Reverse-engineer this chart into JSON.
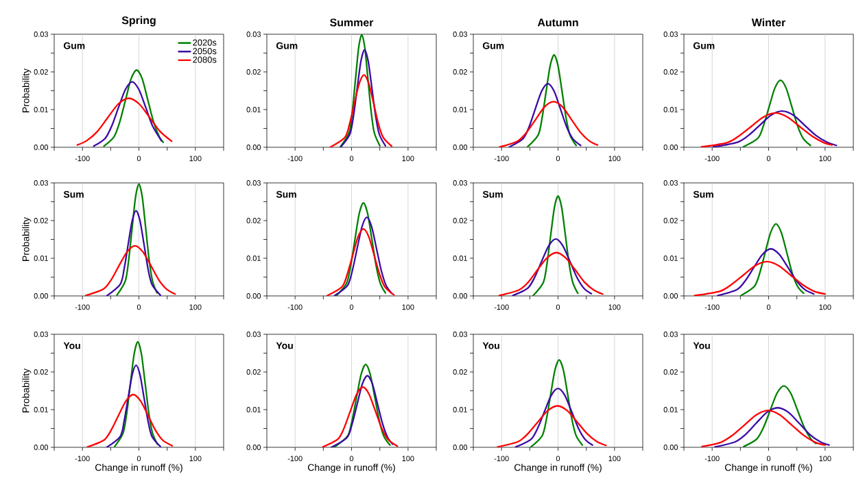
{
  "chart_data": [
    {
      "type": "line",
      "title": "Spring",
      "ylabel": "Probability",
      "annotations": [
        "Gum"
      ],
      "legend": "top right",
      "grid": "x",
      "marker": "none",
      "line_style": "solid",
      "xlim": [
        -150,
        150
      ],
      "ylim": [
        0,
        0.03
      ],
      "xticks": [
        {
          "value": -150,
          "label": null
        },
        -100,
        {
          "value": -50,
          "label": null
        },
        0,
        {
          "value": 50,
          "label": null
        },
        100,
        {
          "value": 150,
          "label": null
        }
      ],
      "yticks": [
        {
          "value": 0,
          "label": "0.00"
        },
        {
          "value": 0.005,
          "label": null
        },
        {
          "value": 0.01,
          "label": "0.01"
        },
        {
          "value": 0.015,
          "label": null
        },
        {
          "value": 0.02,
          "label": "0.02"
        },
        {
          "value": 0.025,
          "label": null
        },
        {
          "value": 0.03,
          "label": "0.03"
        }
      ],
      "series": [
        {
          "name": "2020s",
          "color": "#008000",
          "x": [
            -62,
            -44,
            -34,
            -24,
            -14,
            -4,
            6,
            16,
            26,
            36,
            43
          ],
          "values": [
            0.0003,
            0.0028,
            0.0067,
            0.0124,
            0.0181,
            0.0205,
            0.0181,
            0.0124,
            0.0067,
            0.0028,
            0.0013
          ]
        },
        {
          "name": "2050s",
          "color": "#3b0aa6",
          "x": [
            -80,
            -60,
            -48,
            -36,
            -24,
            -12,
            0,
            12,
            24,
            40
          ],
          "values": [
            0.0003,
            0.0023,
            0.0057,
            0.0106,
            0.0153,
            0.0174,
            0.0153,
            0.0106,
            0.0057,
            0.0017
          ]
        },
        {
          "name": "2080s",
          "color": "#ff0000",
          "x": [
            -109,
            -92,
            -73.5,
            -55,
            -36.5,
            -18,
            0.5,
            19,
            37.5,
            58
          ],
          "values": [
            0.0006,
            0.0018,
            0.0042,
            0.0079,
            0.0115,
            0.013,
            0.0115,
            0.0079,
            0.0042,
            0.0016
          ]
        }
      ]
    },
    {
      "type": "line",
      "title": "Summer",
      "annotations": [
        "Gum"
      ],
      "grid": "x",
      "marker": "none",
      "line_style": "solid",
      "xlim": [
        -150,
        150
      ],
      "ylim": [
        0,
        0.03
      ],
      "xticks": [
        {
          "value": -150,
          "label": null
        },
        -100,
        {
          "value": -50,
          "label": null
        },
        0,
        {
          "value": 50,
          "label": null
        },
        100,
        {
          "value": 150,
          "label": null
        }
      ],
      "yticks": [
        {
          "value": 0,
          "label": "0.00"
        },
        {
          "value": 0.005,
          "label": null
        },
        {
          "value": 0.01,
          "label": "0.01"
        },
        {
          "value": 0.015,
          "label": null
        },
        {
          "value": 0.02,
          "label": "0.02"
        },
        {
          "value": 0.025,
          "label": null
        },
        {
          "value": 0.03,
          "label": "0.03"
        }
      ],
      "series": [
        {
          "color": "#008000",
          "x": [
            -20,
            -4,
            1.5,
            7,
            12.5,
            18,
            23.5,
            29,
            34.5,
            40,
            50
          ],
          "values": [
            0.0001,
            0.004,
            0.0097,
            0.0181,
            0.0264,
            0.0299,
            0.0264,
            0.0181,
            0.0097,
            0.004,
            0.0004
          ]
        },
        {
          "color": "#3b0aa6",
          "x": [
            -19,
            -3,
            3.5,
            10,
            16.5,
            23,
            29.5,
            36,
            42.5,
            49,
            60
          ],
          "values": [
            0.0001,
            0.0035,
            0.0084,
            0.0157,
            0.0228,
            0.0259,
            0.0228,
            0.0157,
            0.0084,
            0.0035,
            0.0004
          ]
        },
        {
          "color": "#ff0000",
          "x": [
            -38,
            -12,
            -3.5,
            5,
            13.5,
            22,
            30.5,
            39,
            47.5,
            56,
            71
          ],
          "values": [
            0,
            0.0026,
            0.0062,
            0.0117,
            0.0169,
            0.0192,
            0.0169,
            0.0117,
            0.0062,
            0.0026,
            0.0003
          ]
        }
      ]
    },
    {
      "type": "line",
      "title": "Autumn",
      "annotations": [
        "Gum"
      ],
      "grid": "x",
      "marker": "none",
      "line_style": "solid",
      "xlim": [
        -150,
        150
      ],
      "ylim": [
        0,
        0.03
      ],
      "xticks": [
        {
          "value": -150,
          "label": null
        },
        -100,
        {
          "value": -50,
          "label": null
        },
        0,
        {
          "value": 50,
          "label": null
        },
        100,
        {
          "value": 150,
          "label": null
        }
      ],
      "yticks": [
        {
          "value": 0,
          "label": "0.00"
        },
        {
          "value": 0.005,
          "label": null
        },
        {
          "value": 0.01,
          "label": "0.01"
        },
        {
          "value": 0.015,
          "label": null
        },
        {
          "value": 0.02,
          "label": "0.02"
        },
        {
          "value": 0.025,
          "label": null
        },
        {
          "value": 0.03,
          "label": "0.03"
        }
      ],
      "series": [
        {
          "color": "#008000",
          "x": [
            -54,
            -35,
            -28,
            -21,
            -14,
            -7,
            0,
            7,
            14,
            21,
            32
          ],
          "values": [
            0.0001,
            0.0033,
            0.008,
            0.0149,
            0.0216,
            0.0245,
            0.0216,
            0.0149,
            0.008,
            0.0033,
            0.0005
          ]
        },
        {
          "color": "#3b0aa6",
          "x": [
            -86,
            -62,
            -51,
            -40,
            -29,
            -18,
            -7,
            4,
            15,
            26,
            40
          ],
          "values": [
            0.0001,
            0.0023,
            0.0055,
            0.0103,
            0.0149,
            0.0169,
            0.0149,
            0.0103,
            0.0055,
            0.0023,
            0.0005
          ]
        },
        {
          "color": "#ff0000",
          "x": [
            -103,
            -72,
            -56,
            -40,
            -24,
            -8,
            8,
            24,
            40,
            56,
            70
          ],
          "values": [
            0.0001,
            0.0016,
            0.0039,
            0.0073,
            0.0107,
            0.0121,
            0.0107,
            0.0073,
            0.0039,
            0.0016,
            0.0006
          ]
        }
      ]
    },
    {
      "type": "line",
      "title": "Winter",
      "annotations": [
        "Gum"
      ],
      "grid": "x",
      "marker": "none",
      "line_style": "solid",
      "xlim": [
        -150,
        150
      ],
      "ylim": [
        0,
        0.03
      ],
      "xticks": [
        {
          "value": -150,
          "label": null
        },
        -100,
        {
          "value": -50,
          "label": null
        },
        0,
        {
          "value": 50,
          "label": null
        },
        100,
        {
          "value": 150,
          "label": null
        }
      ],
      "yticks": [
        {
          "value": 0,
          "label": "0.00"
        },
        {
          "value": 0.005,
          "label": null
        },
        {
          "value": 0.01,
          "label": "0.01"
        },
        {
          "value": 0.015,
          "label": null
        },
        {
          "value": 0.02,
          "label": "0.02"
        },
        {
          "value": 0.025,
          "label": null
        },
        {
          "value": 0.03,
          "label": "0.03"
        }
      ],
      "series": [
        {
          "color": "#008000",
          "x": [
            -45,
            -19,
            -9,
            1,
            11,
            21,
            31,
            41,
            51,
            61,
            74
          ],
          "values": [
            0.0001,
            0.0024,
            0.0058,
            0.0108,
            0.0157,
            0.0178,
            0.0157,
            0.0108,
            0.0058,
            0.0024,
            0.0005
          ]
        },
        {
          "color": "#3b0aa6",
          "x": [
            -98,
            -56,
            -36,
            -16,
            4,
            24,
            44,
            64,
            84,
            104,
            120
          ],
          "values": [
            0.0001,
            0.0013,
            0.0031,
            0.0058,
            0.0085,
            0.0096,
            0.0085,
            0.0058,
            0.0031,
            0.0013,
            0.0005
          ]
        },
        {
          "color": "#ff0000",
          "x": [
            -119,
            -74,
            -52.5,
            -31,
            -9.5,
            12,
            33.5,
            55,
            76.5,
            98,
            112
          ],
          "values": [
            0.0001,
            0.0012,
            0.003,
            0.0055,
            0.008,
            0.0091,
            0.008,
            0.0055,
            0.003,
            0.0012,
            0.0006
          ]
        }
      ]
    },
    {
      "type": "line",
      "ylabel": "Probability",
      "annotations": [
        "Sum"
      ],
      "grid": "x",
      "marker": "none",
      "line_style": "solid",
      "xlim": [
        -150,
        150
      ],
      "ylim": [
        0,
        0.03
      ],
      "xticks": [
        {
          "value": -150,
          "label": null
        },
        -100,
        {
          "value": -50,
          "label": null
        },
        0,
        {
          "value": 50,
          "label": null
        },
        100,
        {
          "value": 150,
          "label": null
        }
      ],
      "yticks": [
        {
          "value": 0,
          "label": "0.00"
        },
        {
          "value": 0.005,
          "label": null
        },
        {
          "value": 0.01,
          "label": "0.01"
        },
        {
          "value": 0.015,
          "label": null
        },
        {
          "value": 0.02,
          "label": "0.02"
        },
        {
          "value": 0.025,
          "label": null
        },
        {
          "value": 0.03,
          "label": "0.03"
        }
      ],
      "series": [
        {
          "color": "#008000",
          "x": [
            -39,
            -24,
            -18,
            -12,
            -6,
            0,
            6,
            12,
            18,
            24,
            32
          ],
          "values": [
            0.0002,
            0.004,
            0.0097,
            0.018,
            0.0262,
            0.0297,
            0.0262,
            0.018,
            0.0097,
            0.004,
            0.0008
          ]
        },
        {
          "color": "#3b0aa6",
          "x": [
            -57,
            -33,
            -26,
            -19,
            -12,
            -5,
            2,
            9,
            16,
            23,
            38
          ],
          "values": [
            0,
            0.0031,
            0.0073,
            0.0137,
            0.0199,
            0.0226,
            0.0199,
            0.0137,
            0.0073,
            0.0031,
            0.0002
          ]
        },
        {
          "color": "#ff0000",
          "x": [
            -94,
            -63,
            -49,
            -35,
            -21,
            -7,
            7,
            21,
            35,
            49,
            64
          ],
          "values": [
            0.0001,
            0.0018,
            0.0043,
            0.0081,
            0.0117,
            0.0133,
            0.0117,
            0.0081,
            0.0043,
            0.0018,
            0.0005
          ]
        }
      ]
    },
    {
      "type": "line",
      "annotations": [
        "Sum"
      ],
      "grid": "x",
      "marker": "none",
      "line_style": "solid",
      "xlim": [
        -150,
        150
      ],
      "ylim": [
        0,
        0.03
      ],
      "xticks": [
        {
          "value": -150,
          "label": null
        },
        -100,
        {
          "value": -50,
          "label": null
        },
        0,
        {
          "value": 50,
          "label": null
        },
        100,
        {
          "value": 150,
          "label": null
        }
      ],
      "yticks": [
        {
          "value": 0,
          "label": "0.00"
        },
        {
          "value": 0.005,
          "label": null
        },
        {
          "value": 0.01,
          "label": "0.01"
        },
        {
          "value": 0.015,
          "label": null
        },
        {
          "value": 0.02,
          "label": "0.02"
        },
        {
          "value": 0.025,
          "label": null
        },
        {
          "value": 0.03,
          "label": "0.03"
        }
      ],
      "series": [
        {
          "color": "#008000",
          "x": [
            -26,
            -9,
            -1.5,
            6,
            13.5,
            21,
            28.5,
            36,
            43.5,
            51,
            60
          ],
          "values": [
            0.0002,
            0.0033,
            0.008,
            0.015,
            0.0218,
            0.0247,
            0.0218,
            0.015,
            0.008,
            0.0033,
            0.0008
          ]
        },
        {
          "color": "#3b0aa6",
          "x": [
            -30,
            -7,
            1.5,
            10,
            18.5,
            27,
            35.5,
            44,
            52.5,
            61,
            71
          ],
          "values": [
            0.0001,
            0.0028,
            0.0068,
            0.0127,
            0.0184,
            0.0209,
            0.0184,
            0.0127,
            0.0068,
            0.0028,
            0.0007
          ]
        },
        {
          "color": "#ff0000",
          "x": [
            -43,
            -17,
            -7.5,
            2,
            11.5,
            21,
            30.5,
            40,
            49.5,
            59,
            75
          ],
          "values": [
            0.0001,
            0.0024,
            0.0058,
            0.0108,
            0.0157,
            0.0178,
            0.0157,
            0.0108,
            0.0058,
            0.0024,
            0.0003
          ]
        }
      ]
    },
    {
      "type": "line",
      "annotations": [
        "Sum"
      ],
      "grid": "x",
      "marker": "none",
      "line_style": "solid",
      "xlim": [
        -150,
        150
      ],
      "ylim": [
        0,
        0.03
      ],
      "xticks": [
        {
          "value": -150,
          "label": null
        },
        -100,
        {
          "value": -50,
          "label": null
        },
        0,
        {
          "value": 50,
          "label": null
        },
        100,
        {
          "value": 150,
          "label": null
        }
      ],
      "yticks": [
        {
          "value": 0,
          "label": "0.00"
        },
        {
          "value": 0.005,
          "label": null
        },
        {
          "value": 0.01,
          "label": "0.01"
        },
        {
          "value": 0.015,
          "label": null
        },
        {
          "value": 0.02,
          "label": "0.02"
        },
        {
          "value": 0.025,
          "label": null
        },
        {
          "value": 0.03,
          "label": "0.03"
        }
      ],
      "series": [
        {
          "color": "#008000",
          "x": [
            -44,
            -26,
            -19.5,
            -13,
            -6.5,
            0,
            6.5,
            13,
            19.5,
            26,
            35
          ],
          "values": [
            0.0001,
            0.0036,
            0.0086,
            0.0161,
            0.0234,
            0.0265,
            0.0234,
            0.0161,
            0.0086,
            0.0036,
            0.0007
          ]
        },
        {
          "color": "#3b0aa6",
          "x": [
            -80,
            -54,
            -41.5,
            -29,
            -16.5,
            -4,
            8.5,
            21,
            33.5,
            46,
            59
          ],
          "values": [
            0.0001,
            0.002,
            0.0049,
            0.0092,
            0.0133,
            0.0151,
            0.0133,
            0.0092,
            0.0049,
            0.002,
            0.0006
          ]
        },
        {
          "color": "#ff0000",
          "x": [
            -104,
            -69,
            -52.5,
            -36,
            -19.5,
            -3,
            13.5,
            30,
            46.5,
            63,
            79
          ],
          "values": [
            0.0001,
            0.0016,
            0.0037,
            0.007,
            0.0101,
            0.0115,
            0.0101,
            0.007,
            0.0037,
            0.0016,
            0.0005
          ]
        }
      ]
    },
    {
      "type": "line",
      "annotations": [
        "Sum"
      ],
      "grid": "x",
      "marker": "none",
      "line_style": "solid",
      "xlim": [
        -150,
        150
      ],
      "ylim": [
        0,
        0.03
      ],
      "xticks": [
        {
          "value": -150,
          "label": null
        },
        -100,
        {
          "value": -50,
          "label": null
        },
        0,
        {
          "value": 50,
          "label": null
        },
        100,
        {
          "value": 150,
          "label": null
        }
      ],
      "yticks": [
        {
          "value": 0,
          "label": "0.00"
        },
        {
          "value": 0.005,
          "label": null
        },
        {
          "value": 0.01,
          "label": "0.01"
        },
        {
          "value": 0.015,
          "label": null
        },
        {
          "value": 0.02,
          "label": "0.02"
        },
        {
          "value": 0.025,
          "label": null
        },
        {
          "value": 0.03,
          "label": "0.03"
        }
      ],
      "series": [
        {
          "color": "#008000",
          "x": [
            -49,
            -25,
            -15.5,
            -6,
            3.5,
            13,
            22.5,
            32,
            41.5,
            51,
            62
          ],
          "values": [
            0.0001,
            0.0026,
            0.0062,
            0.0116,
            0.0168,
            0.0191,
            0.0168,
            0.0116,
            0.0062,
            0.0026,
            0.0007
          ]
        },
        {
          "color": "#3b0aa6",
          "x": [
            -90,
            -56,
            -41,
            -26,
            -11,
            4,
            19,
            34,
            49,
            64,
            80
          ],
          "values": [
            0.0001,
            0.0017,
            0.0041,
            0.0076,
            0.011,
            0.0125,
            0.011,
            0.0076,
            0.0041,
            0.0017,
            0.0005
          ]
        },
        {
          "color": "#ff0000",
          "x": [
            -131,
            -87,
            -66,
            -45,
            -24,
            -3,
            18,
            39,
            60,
            81,
            100
          ],
          "values": [
            0.0001,
            0.0012,
            0.003,
            0.0055,
            0.008,
            0.0091,
            0.008,
            0.0055,
            0.003,
            0.0012,
            0.0005
          ]
        }
      ]
    },
    {
      "type": "line",
      "ylabel": "Probability",
      "xlabel": "Change in runoff (%)",
      "annotations": [
        "You"
      ],
      "grid": "x",
      "marker": "none",
      "line_style": "solid",
      "xlim": [
        -150,
        150
      ],
      "ylim": [
        0,
        0.03
      ],
      "xticks": [
        {
          "value": -150,
          "label": null
        },
        -100,
        {
          "value": -50,
          "label": null
        },
        0,
        {
          "value": 50,
          "label": null
        },
        100,
        {
          "value": 150,
          "label": null
        }
      ],
      "yticks": [
        {
          "value": 0,
          "label": "0.00"
        },
        {
          "value": 0.005,
          "label": null
        },
        {
          "value": 0.01,
          "label": "0.01"
        },
        {
          "value": 0.015,
          "label": null
        },
        {
          "value": 0.02,
          "label": "0.02"
        },
        {
          "value": 0.025,
          "label": null
        },
        {
          "value": 0.03,
          "label": "0.03"
        }
      ],
      "series": [
        {
          "color": "#008000",
          "x": [
            -43,
            -28,
            -21.5,
            -15,
            -8.5,
            -2,
            4.5,
            11,
            17.5,
            24,
            33
          ],
          "values": [
            0.0002,
            0.0038,
            0.0091,
            0.017,
            0.0247,
            0.028,
            0.0247,
            0.017,
            0.0091,
            0.0038,
            0.0008
          ]
        },
        {
          "color": "#3b0aa6",
          "x": [
            -57,
            -33,
            -26,
            -19,
            -12,
            -5,
            2,
            9,
            16,
            23,
            38
          ],
          "values": [
            0,
            0.0029,
            0.0071,
            0.0132,
            0.0192,
            0.0218,
            0.0192,
            0.0132,
            0.0071,
            0.0029,
            0.0002
          ]
        },
        {
          "color": "#ff0000",
          "x": [
            -91,
            -62,
            -49,
            -36,
            -23,
            -10,
            3,
            16,
            29,
            42,
            59
          ],
          "values": [
            0.0001,
            0.0019,
            0.0046,
            0.0085,
            0.0123,
            0.014,
            0.0123,
            0.0085,
            0.0046,
            0.0019,
            0.0004
          ]
        }
      ]
    },
    {
      "type": "line",
      "xlabel": "Change in runoff (%)",
      "annotations": [
        "You"
      ],
      "grid": "x",
      "marker": "none",
      "line_style": "solid",
      "xlim": [
        -150,
        150
      ],
      "ylim": [
        0,
        0.03
      ],
      "xticks": [
        {
          "value": -150,
          "label": null
        },
        -100,
        {
          "value": -50,
          "label": null
        },
        0,
        {
          "value": 50,
          "label": null
        },
        100,
        {
          "value": 150,
          "label": null
        }
      ],
      "yticks": [
        {
          "value": 0,
          "label": "0.00"
        },
        {
          "value": 0.005,
          "label": null
        },
        {
          "value": 0.01,
          "label": "0.01"
        },
        {
          "value": 0.015,
          "label": null
        },
        {
          "value": 0.02,
          "label": "0.02"
        },
        {
          "value": 0.025,
          "label": null
        },
        {
          "value": 0.03,
          "label": "0.03"
        }
      ],
      "series": [
        {
          "color": "#008000",
          "x": [
            -31,
            -7,
            1,
            9,
            17,
            25,
            33,
            41,
            49,
            57,
            68
          ],
          "values": [
            0,
            0.003,
            0.0072,
            0.0134,
            0.0194,
            0.022,
            0.0194,
            0.0134,
            0.0072,
            0.003,
            0.0006
          ]
        },
        {
          "color": "#3b0aa6",
          "x": [
            -36,
            -8,
            1,
            10,
            19,
            28,
            37,
            46,
            55,
            64,
            73
          ],
          "values": [
            0,
            0.0026,
            0.0062,
            0.0115,
            0.0168,
            0.019,
            0.0168,
            0.0115,
            0.0062,
            0.0026,
            0.0008
          ]
        },
        {
          "color": "#ff0000",
          "x": [
            -51,
            -24,
            -13,
            -2,
            9,
            20,
            31,
            42,
            53,
            64,
            81
          ],
          "values": [
            0.0001,
            0.0022,
            0.0052,
            0.0097,
            0.0141,
            0.016,
            0.0141,
            0.0097,
            0.0052,
            0.0022,
            0.0003
          ]
        }
      ]
    },
    {
      "type": "line",
      "xlabel": "Change in runoff (%)",
      "annotations": [
        "You"
      ],
      "grid": "x",
      "marker": "none",
      "line_style": "solid",
      "xlim": [
        -150,
        150
      ],
      "ylim": [
        0,
        0.03
      ],
      "xticks": [
        {
          "value": -150,
          "label": null
        },
        -100,
        {
          "value": -50,
          "label": null
        },
        0,
        {
          "value": 50,
          "label": null
        },
        100,
        {
          "value": 150,
          "label": null
        }
      ],
      "yticks": [
        {
          "value": 0,
          "label": "0.00"
        },
        {
          "value": 0.005,
          "label": null
        },
        {
          "value": 0.01,
          "label": "0.01"
        },
        {
          "value": 0.015,
          "label": null
        },
        {
          "value": 0.02,
          "label": "0.02"
        },
        {
          "value": 0.025,
          "label": null
        },
        {
          "value": 0.03,
          "label": "0.03"
        }
      ],
      "series": [
        {
          "color": "#008000",
          "x": [
            -48,
            -28,
            -20.5,
            -13,
            -5.5,
            2,
            9.5,
            17,
            24.5,
            32,
            43
          ],
          "values": [
            0.0001,
            0.0031,
            0.0075,
            0.0141,
            0.0205,
            0.0232,
            0.0205,
            0.0141,
            0.0075,
            0.0031,
            0.0006
          ]
        },
        {
          "color": "#3b0aa6",
          "x": [
            -75,
            -48,
            -36,
            -24,
            -12,
            0,
            12,
            24,
            36,
            48,
            61
          ],
          "values": [
            0.0001,
            0.0021,
            0.0051,
            0.0095,
            0.0138,
            0.0156,
            0.0138,
            0.0095,
            0.0051,
            0.0021,
            0.0006
          ]
        },
        {
          "color": "#ff0000",
          "x": [
            -107,
            -71,
            -53.5,
            -36,
            -18.5,
            -1,
            16.5,
            34,
            51.5,
            69,
            85
          ],
          "values": [
            0.0001,
            0.0015,
            0.0036,
            0.0067,
            0.0097,
            0.011,
            0.0097,
            0.0067,
            0.0036,
            0.0015,
            0.0005
          ]
        }
      ]
    },
    {
      "type": "line",
      "xlabel": "Change in runoff (%)",
      "annotations": [
        "You"
      ],
      "grid": "x",
      "marker": "none",
      "line_style": "solid",
      "xlim": [
        -150,
        150
      ],
      "ylim": [
        0,
        0.03
      ],
      "xticks": [
        {
          "value": -150,
          "label": null
        },
        -100,
        {
          "value": -50,
          "label": null
        },
        0,
        {
          "value": 50,
          "label": null
        },
        100,
        {
          "value": 150,
          "label": null
        }
      ],
      "yticks": [
        {
          "value": 0,
          "label": "0.00"
        },
        {
          "value": 0.005,
          "label": null
        },
        {
          "value": 0.01,
          "label": "0.01"
        },
        {
          "value": 0.015,
          "label": null
        },
        {
          "value": 0.02,
          "label": "0.02"
        },
        {
          "value": 0.025,
          "label": null
        },
        {
          "value": 0.03,
          "label": "0.03"
        }
      ],
      "series": [
        {
          "color": "#008000",
          "x": [
            -44,
            -21,
            -9,
            3,
            15,
            27,
            39,
            51,
            63,
            75,
            84
          ],
          "values": [
            0.0002,
            0.0022,
            0.0053,
            0.0099,
            0.0144,
            0.0163,
            0.0144,
            0.0099,
            0.0053,
            0.0022,
            0.001
          ]
        },
        {
          "color": "#3b0aa6",
          "x": [
            -95,
            -60,
            -41,
            -22,
            -3,
            16,
            35,
            54,
            73,
            92,
            107
          ],
          "values": [
            0.0001,
            0.0014,
            0.0034,
            0.0064,
            0.0093,
            0.0105,
            0.0093,
            0.0064,
            0.0034,
            0.0014,
            0.0006
          ]
        },
        {
          "color": "#ff0000",
          "x": [
            -118,
            -85,
            -64,
            -43,
            -22,
            -1,
            20,
            41,
            62,
            83,
            100
          ],
          "values": [
            0.0002,
            0.0013,
            0.0032,
            0.0059,
            0.0086,
            0.0098,
            0.0086,
            0.0059,
            0.0032,
            0.0013,
            0.0006
          ]
        }
      ]
    }
  ]
}
